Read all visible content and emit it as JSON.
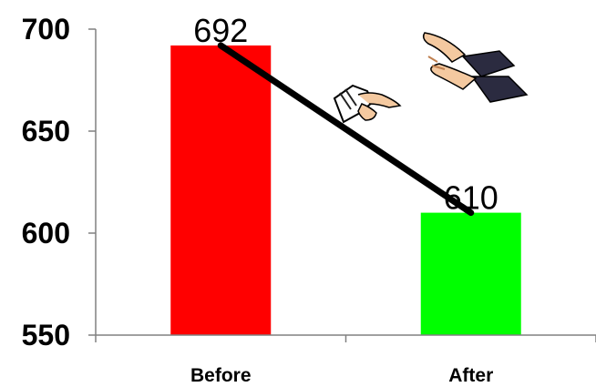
{
  "chart_data": {
    "type": "bar",
    "categories": [
      "Before",
      "After"
    ],
    "values": [
      692,
      610
    ],
    "data_labels": [
      "692",
      "610"
    ],
    "bar_colors": [
      "#ff0000",
      "#00ff00"
    ],
    "ylim": [
      550,
      700
    ],
    "yticks": [
      550,
      600,
      650,
      700
    ],
    "ytick_labels": [
      "550",
      "600",
      "650",
      "700"
    ],
    "grid": false,
    "legend": "none",
    "overlay_line": {
      "color": "#000000",
      "connects": "bar-tops"
    },
    "clipart": [
      "clapping-hands-icon",
      "pointing-hand-icon"
    ]
  }
}
